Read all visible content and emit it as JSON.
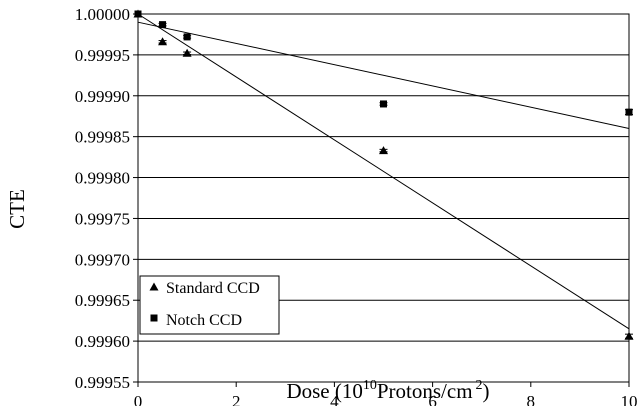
{
  "chart_data": {
    "type": "scatter",
    "title": "",
    "xlabel": {
      "main": "Dose (10",
      "sup1": "10",
      "mid": "Protons/cm",
      "sup2": "2",
      "end": ")"
    },
    "ylabel": "CTE",
    "xlim": [
      0,
      10
    ],
    "ylim": [
      0.99955,
      1.0
    ],
    "xticks": [
      0,
      2,
      4,
      6,
      8,
      10
    ],
    "xtick_labels": [
      "0",
      "2",
      "4",
      "6",
      "8",
      "10"
    ],
    "yticks": [
      0.99955,
      0.9996,
      0.99965,
      0.9997,
      0.99975,
      0.9998,
      0.99985,
      0.9999,
      0.99995,
      1.0
    ],
    "ytick_labels": [
      "0.99955",
      "0.99960",
      "0.99965",
      "0.99970",
      "0.99975",
      "0.99980",
      "0.99985",
      "0.99990",
      "0.99995",
      "1.00000"
    ],
    "grid": "horizontal",
    "legend_position": "bottom-left",
    "series": [
      {
        "name": "Standard CCD",
        "marker": "triangle",
        "x": [
          0,
          0.5,
          1,
          5,
          10
        ],
        "y": [
          1.0,
          0.999966,
          0.999952,
          0.999833,
          0.999606
        ],
        "err": [
          0.0,
          1.5e-06,
          1.5e-06,
          1.5e-06,
          2.5e-06
        ],
        "fit": [
          [
            0,
            1.0
          ],
          [
            10,
            0.999615
          ]
        ]
      },
      {
        "name": "Notch CCD",
        "marker": "square",
        "x": [
          0,
          0.5,
          1,
          5,
          10
        ],
        "y": [
          1.0,
          0.999987,
          0.999972,
          0.99989,
          0.99988
        ],
        "err": [
          0.0,
          1.5e-06,
          1.5e-06,
          1.5e-06,
          3e-06
        ],
        "fit": [
          [
            0,
            0.99999
          ],
          [
            10,
            0.99986
          ]
        ]
      }
    ],
    "colors": {
      "marker": "#000000",
      "line": "#000000",
      "grid": "#000000"
    }
  }
}
